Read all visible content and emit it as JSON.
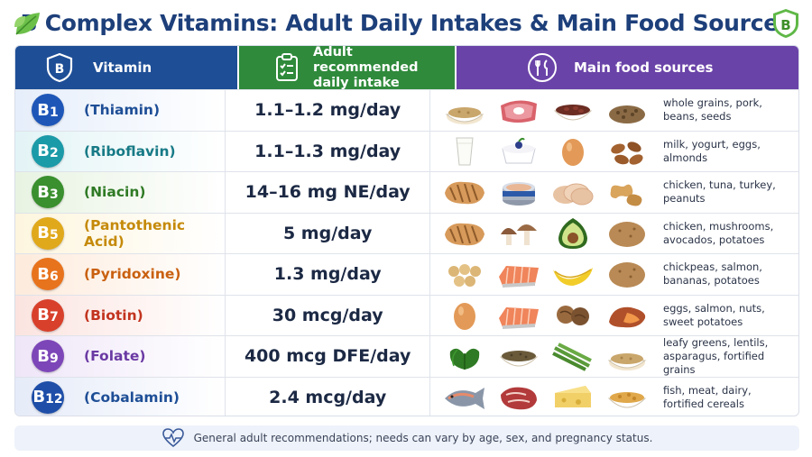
{
  "title": "B Complex Vitamins: Adult Daily Intakes & Main Food Sources",
  "headers": {
    "vitamin": "Vitamin",
    "intake_line1": "Adult recommended",
    "intake_line2": "daily intake",
    "foods": "Main food sources"
  },
  "rows": [
    {
      "code": "B",
      "num": "1",
      "name": "(Thiamin)",
      "intake": "1.1–1.2 mg/day",
      "foods_line1": "whole grains, pork,",
      "foods_line2": "beans, seeds",
      "color": "#1e56b8",
      "tint": "#e6eefb",
      "text_color": "#1e4e96",
      "icons": [
        "grains-bowl-icon",
        "pork-icon",
        "beans-bowl-icon",
        "seeds-icon"
      ]
    },
    {
      "code": "B",
      "num": "2",
      "name": "(Riboflavin)",
      "intake": "1.1–1.3 mg/day",
      "foods_line1": "milk, yogurt, eggs,",
      "foods_line2": "almonds",
      "color": "#1b9aa8",
      "tint": "#e3f4f6",
      "text_color": "#177a86",
      "icons": [
        "milk-glass-icon",
        "yogurt-icon",
        "egg-icon",
        "almonds-icon"
      ]
    },
    {
      "code": "B",
      "num": "3",
      "name": "(Niacin)",
      "intake": "14–16 mg NE/day",
      "foods_line1": "chicken, tuna, turkey,",
      "foods_line2": "peanuts",
      "color": "#3a8f2e",
      "tint": "#e8f3e2",
      "text_color": "#2f7a25",
      "icons": [
        "grilled-chicken-icon",
        "tuna-can-icon",
        "turkey-slices-icon",
        "peanuts-icon"
      ]
    },
    {
      "code": "B",
      "num": "5",
      "name": "(Pantothenic Acid)",
      "intake": "5 mg/day",
      "foods_line1": "chicken, mushrooms,",
      "foods_line2": "avocados, potatoes",
      "color": "#e0a81b",
      "tint": "#fdf5de",
      "text_color": "#c58a0a",
      "icons": [
        "grilled-chicken-icon",
        "mushrooms-icon",
        "avocado-icon",
        "potato-icon"
      ]
    },
    {
      "code": "B",
      "num": "6",
      "name": "(Pyridoxine)",
      "intake": "1.3 mg/day",
      "foods_line1": "chickpeas, salmon,",
      "foods_line2": "bananas, potatoes",
      "color": "#e8731d",
      "tint": "#fdebdc",
      "text_color": "#c9600f",
      "icons": [
        "chickpeas-icon",
        "salmon-icon",
        "banana-icon",
        "potato-icon"
      ]
    },
    {
      "code": "B",
      "num": "7",
      "name": "(Biotin)",
      "intake": "30 mcg/day",
      "foods_line1": "eggs, salmon, nuts,",
      "foods_line2": "sweet potatoes",
      "color": "#d8402b",
      "tint": "#fbe4e0",
      "text_color": "#c2331f",
      "icons": [
        "egg-icon",
        "salmon-icon",
        "walnuts-icon",
        "sweet-potato-icon"
      ]
    },
    {
      "code": "B",
      "num": "9",
      "name": "(Folate)",
      "intake": "400 mcg DFE/day",
      "foods_line1": "leafy greens, lentils,",
      "foods_line2": "asparagus, fortified grains",
      "color": "#7d46b8",
      "tint": "#efe6f8",
      "text_color": "#6a3aa3",
      "icons": [
        "spinach-icon",
        "lentils-bowl-icon",
        "asparagus-icon",
        "grains-bowl-icon"
      ]
    },
    {
      "code": "B",
      "num": "12",
      "name": "(Cobalamin)",
      "intake": "2.4 mcg/day",
      "foods_line1": "fish, meat, dairy,",
      "foods_line2": "fortified cereals",
      "color": "#1e4ea8",
      "tint": "#e5ebf8",
      "text_color": "#1e4e96",
      "icons": [
        "fish-icon",
        "steak-icon",
        "cheese-icon",
        "cereal-bowl-icon"
      ]
    }
  ],
  "footer": "General adult recommendations; needs can vary by age, sex, and pregnancy status.",
  "icons": {
    "title_left": "leaf-icon",
    "title_right": "shield-leaf-icon",
    "vitamin_header": "shield-icon",
    "intake_header": "clipboard-check-icon",
    "foods_header": "utensils-icon",
    "footer": "heart-pulse-icon"
  }
}
